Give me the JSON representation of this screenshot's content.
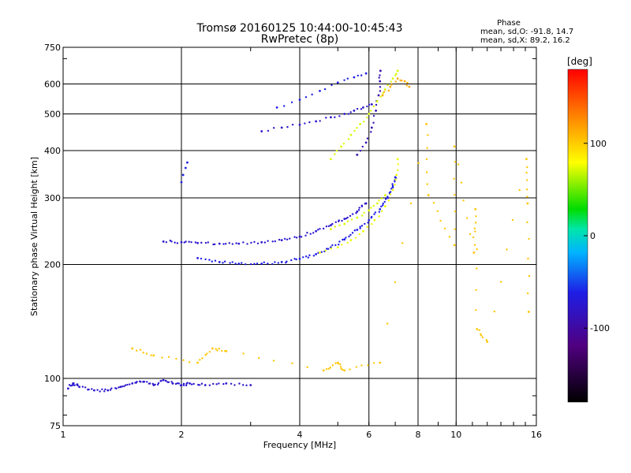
{
  "chart_data": {
    "type": "scatter",
    "title": "Tromsø 20160125 10:44:00-10:45:43",
    "subtitle": "RwPretec (8p)",
    "xlabel": "Frequency [MHz]",
    "ylabel": "Stationary phase Virtual Height [km]",
    "x_scale": "log",
    "y_scale": "log",
    "xlim": [
      1,
      16
    ],
    "ylim": [
      75,
      750
    ],
    "x_ticks": [
      1,
      2,
      4,
      6,
      8,
      10,
      16
    ],
    "y_ticks": [
      75,
      100,
      200,
      300,
      400,
      500,
      600,
      750
    ],
    "grid": true,
    "phase_info": {
      "heading": "Phase",
      "line_o": "mean, sd,O: -91.8, 14.7",
      "line_x": "mean, sd,X: 89.2, 16.2"
    },
    "colorbar": {
      "label": "[deg]",
      "range": [
        -180,
        180
      ],
      "ticks": [
        100,
        0,
        -100
      ],
      "colormap": "rainbow"
    },
    "series": [
      {
        "points": [
          [
            1.03,
            94
          ],
          [
            1.06,
            97
          ],
          [
            1.1,
            95
          ],
          [
            1.2,
            93
          ],
          [
            1.3,
            93
          ],
          [
            1.4,
            95
          ],
          [
            1.5,
            97
          ],
          [
            1.6,
            98
          ],
          [
            1.7,
            96
          ],
          [
            1.8,
            99
          ],
          [
            1.9,
            97
          ],
          [
            2.0,
            96
          ],
          [
            2.1,
            97
          ],
          [
            2.3,
            96
          ],
          [
            2.6,
            97
          ],
          [
            3.0,
            96
          ]
        ],
        "phase": -105
      },
      {
        "points": [
          [
            2.0,
            330
          ],
          [
            2.02,
            345
          ],
          [
            2.05,
            360
          ],
          [
            2.07,
            372
          ]
        ],
        "phase": -100
      },
      {
        "points": [
          [
            1.8,
            230
          ],
          [
            2.0,
            229
          ],
          [
            2.2,
            228
          ],
          [
            2.5,
            227
          ],
          [
            2.8,
            227
          ],
          [
            3.2,
            229
          ],
          [
            3.6,
            232
          ],
          [
            4.0,
            237
          ],
          [
            4.4,
            245
          ],
          [
            4.8,
            254
          ],
          [
            5.2,
            264
          ],
          [
            5.6,
            276
          ],
          [
            5.9,
            290
          ]
        ],
        "phase": -105
      },
      {
        "points": [
          [
            2.2,
            208
          ],
          [
            2.5,
            203
          ],
          [
            2.8,
            201
          ],
          [
            3.2,
            201
          ],
          [
            3.6,
            203
          ],
          [
            4.0,
            207
          ],
          [
            4.4,
            213
          ],
          [
            4.8,
            222
          ],
          [
            5.2,
            233
          ],
          [
            5.6,
            247
          ],
          [
            6.0,
            262
          ],
          [
            6.4,
            280
          ],
          [
            6.7,
            300
          ],
          [
            6.9,
            320
          ],
          [
            7.0,
            340
          ]
        ],
        "phase": -100
      },
      {
        "points": [
          [
            4.5,
            215
          ],
          [
            5.0,
            222
          ],
          [
            5.4,
            232
          ],
          [
            5.8,
            245
          ],
          [
            6.2,
            262
          ],
          [
            6.6,
            285
          ],
          [
            6.9,
            315
          ],
          [
            7.05,
            345
          ],
          [
            7.1,
            380
          ]
        ],
        "phase": 95
      },
      {
        "points": [
          [
            4.8,
            248
          ],
          [
            5.2,
            256
          ],
          [
            5.6,
            266
          ],
          [
            6.0,
            278
          ],
          [
            6.3,
            290
          ],
          [
            6.6,
            305
          ]
        ],
        "phase": 90
      },
      {
        "points": [
          [
            3.2,
            450
          ],
          [
            3.6,
            460
          ],
          [
            4.0,
            468
          ],
          [
            4.4,
            478
          ],
          [
            4.8,
            490
          ],
          [
            5.2,
            500
          ],
          [
            5.5,
            510
          ],
          [
            5.8,
            520
          ],
          [
            6.1,
            530
          ]
        ],
        "phase": -105
      },
      {
        "points": [
          [
            3.5,
            520
          ],
          [
            4.0,
            545
          ],
          [
            4.5,
            575
          ],
          [
            5.0,
            605
          ],
          [
            5.5,
            625
          ],
          [
            5.9,
            640
          ]
        ],
        "phase": -100
      },
      {
        "points": [
          [
            5.6,
            390
          ],
          [
            5.9,
            420
          ],
          [
            6.1,
            460
          ],
          [
            6.25,
            510
          ],
          [
            6.35,
            560
          ],
          [
            6.4,
            610
          ],
          [
            6.42,
            650
          ]
        ],
        "phase": -110
      },
      {
        "points": [
          [
            4.8,
            380
          ],
          [
            5.1,
            410
          ],
          [
            5.4,
            440
          ],
          [
            5.7,
            470
          ],
          [
            6.0,
            500
          ],
          [
            6.3,
            540
          ],
          [
            6.6,
            580
          ],
          [
            6.9,
            620
          ],
          [
            7.1,
            650
          ]
        ],
        "phase": 90
      },
      {
        "points": [
          [
            6.5,
            560
          ],
          [
            6.8,
            590
          ],
          [
            7.1,
            620
          ],
          [
            7.4,
            610
          ],
          [
            7.6,
            590
          ]
        ],
        "phase": 130
      },
      {
        "points": [
          [
            1.5,
            120
          ],
          [
            1.7,
            115
          ],
          [
            2.2,
            110
          ],
          [
            2.4,
            120
          ],
          [
            2.6,
            118
          ],
          [
            4.6,
            105
          ],
          [
            5.0,
            110
          ],
          [
            5.2,
            105
          ],
          [
            6.4,
            110
          ],
          [
            8.4,
            470
          ],
          [
            8.5,
            305
          ],
          [
            9.9,
            225
          ],
          [
            9.9,
            410
          ],
          [
            11.1,
            215
          ],
          [
            11.2,
            280
          ],
          [
            11.3,
            135
          ],
          [
            12.0,
            125
          ],
          [
            15.1,
            380
          ],
          [
            15.2,
            290
          ],
          [
            15.3,
            150
          ]
        ],
        "phase": 120
      }
    ]
  }
}
